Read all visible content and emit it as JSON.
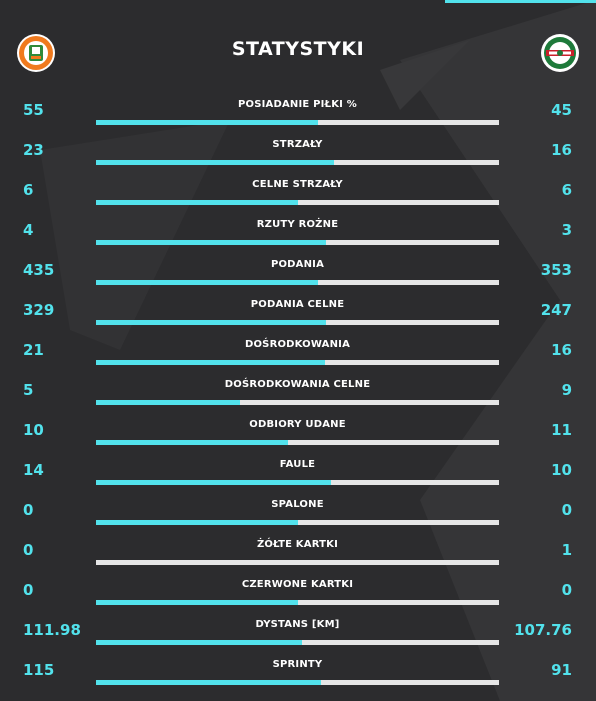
{
  "theme": {
    "accent": "#52e2ec",
    "background": "#2c2c2e",
    "bar_track": "#e6e6e6"
  },
  "header": {
    "title": "STATYSTYKI",
    "home_crest": {
      "icon": "zaglebie-lubin-crest-icon",
      "colors": [
        "#f07a1e",
        "#2f8a3a",
        "#ffffff"
      ]
    },
    "away_crest": {
      "icon": "radomiak-radom-crest-icon",
      "colors": [
        "#1e7a3a",
        "#c8202a",
        "#ffffff"
      ]
    }
  },
  "stats": [
    {
      "label": "POSIADANIE PIŁKI %",
      "home": "55",
      "away": "45",
      "home_share": 0.55
    },
    {
      "label": "STRZAŁY",
      "home": "23",
      "away": "16",
      "home_share": 0.59
    },
    {
      "label": "CELNE STRZAŁY",
      "home": "6",
      "away": "6",
      "home_share": 0.5
    },
    {
      "label": "RZUTY ROŻNE",
      "home": "4",
      "away": "3",
      "home_share": 0.571
    },
    {
      "label": "PODANIA",
      "home": "435",
      "away": "353",
      "home_share": 0.552
    },
    {
      "label": "PODANIA CELNE",
      "home": "329",
      "away": "247",
      "home_share": 0.571
    },
    {
      "label": "DOŚRODKOWANIA",
      "home": "21",
      "away": "16",
      "home_share": 0.568
    },
    {
      "label": "DOŚRODKOWANIA CELNE",
      "home": "5",
      "away": "9",
      "home_share": 0.357
    },
    {
      "label": "ODBIORY UDANE",
      "home": "10",
      "away": "11",
      "home_share": 0.476
    },
    {
      "label": "FAULE",
      "home": "14",
      "away": "10",
      "home_share": 0.583
    },
    {
      "label": "SPALONE",
      "home": "0",
      "away": "0",
      "home_share": 0.5
    },
    {
      "label": "ŻÓŁTE KARTKI",
      "home": "0",
      "away": "1",
      "home_share": 0
    },
    {
      "label": "CZERWONE KARTKI",
      "home": "0",
      "away": "0",
      "home_share": 0.5
    },
    {
      "label": "DYSTANS [KM]",
      "home": "111.98",
      "away": "107.76",
      "home_share": 0.51
    },
    {
      "label": "SPRINTY",
      "home": "115",
      "away": "91",
      "home_share": 0.558
    }
  ]
}
